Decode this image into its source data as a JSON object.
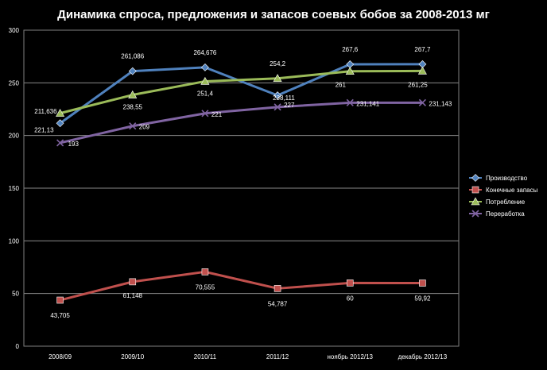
{
  "chart_data": {
    "type": "line",
    "title": "Динамика спроса, предложения и запасов соевых бобов за 2008-2013 мг",
    "xlabel": "",
    "ylabel": "",
    "categories": [
      "2008/09",
      "2009/10",
      "2010/11",
      "2011/12",
      "ноябрь 2012/13",
      "декабрь 2012/13"
    ],
    "ylim": [
      0,
      300
    ],
    "yticks": [
      0,
      50,
      100,
      150,
      200,
      250,
      300
    ],
    "grid": true,
    "legend_position": "right",
    "series": [
      {
        "name": "Производство",
        "color": "#4f81bd",
        "marker": "diamond",
        "values": [
          211.636,
          261.086,
          264.676,
          238.111,
          267.6,
          267.7
        ],
        "labels": [
          "211,636",
          "261,086",
          "264,676",
          "238,111",
          "267,6",
          "267,7"
        ]
      },
      {
        "name": "Конечные запасы",
        "color": "#c0504d",
        "marker": "square",
        "values": [
          43.705,
          61.148,
          70.555,
          54.787,
          60,
          59.92
        ],
        "labels": [
          "43,705",
          "61,148",
          "70,555",
          "54,787",
          "60",
          "59,92"
        ]
      },
      {
        "name": "Потребление",
        "color": "#9bbb59",
        "marker": "triangle",
        "values": [
          221.13,
          238.55,
          251.4,
          254.2,
          261,
          261.25
        ],
        "labels": [
          "221,13",
          "238,55",
          "251,4",
          "254,2",
          "261",
          "261,25"
        ]
      },
      {
        "name": "Переработка",
        "color": "#8064a2",
        "marker": "x",
        "values": [
          193,
          209,
          221,
          227,
          231.141,
          231.143
        ],
        "labels": [
          "193",
          "209",
          "221",
          "227",
          "231,141",
          "231,143"
        ]
      }
    ]
  }
}
